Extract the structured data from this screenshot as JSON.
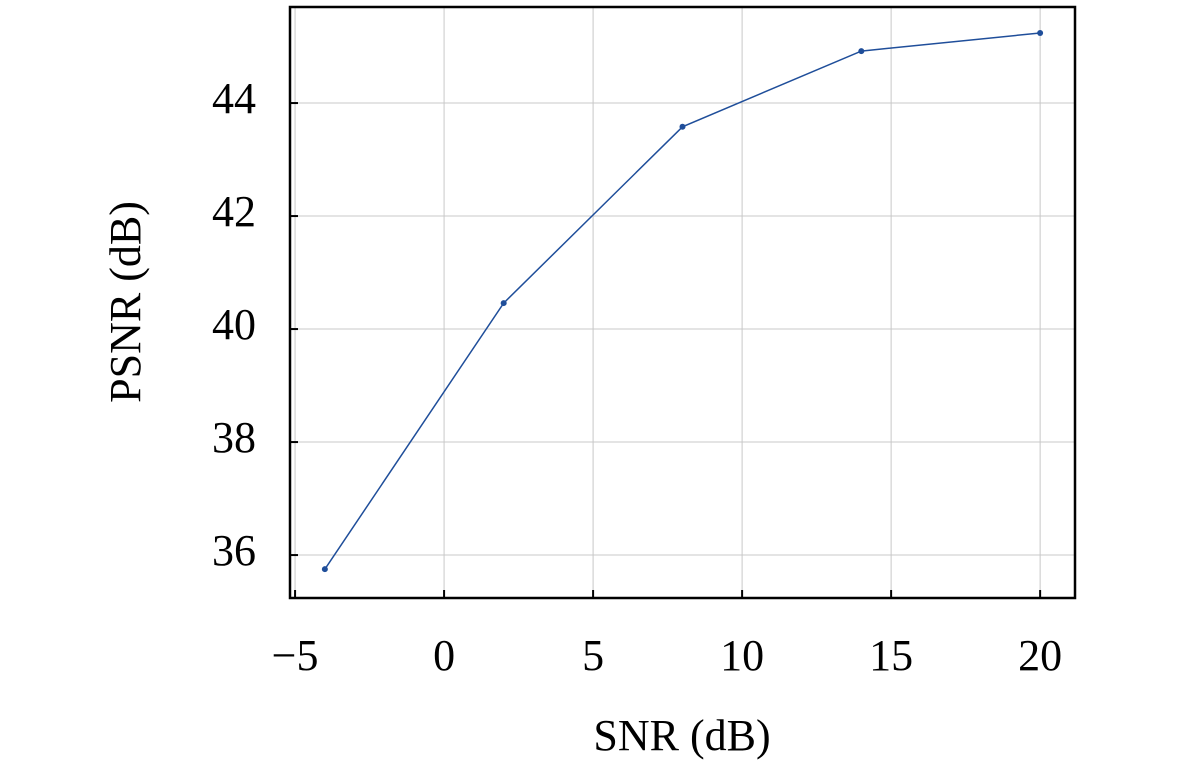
{
  "chart_data": {
    "type": "line",
    "x_label": "SNR (dB)",
    "y_label": "PSNR (dB)",
    "x": [
      -4,
      2,
      8,
      14,
      20
    ],
    "series": [
      {
        "name": "PSNR",
        "color": "#1f4e9a",
        "values": [
          35.75,
          40.46,
          43.58,
          44.92,
          45.24
        ]
      }
    ],
    "xlim": [
      -5.17,
      21.17
    ],
    "xticks": [
      {
        "value": -5,
        "label": "−5"
      },
      0,
      5,
      10,
      15,
      20
    ],
    "ylim": [
      35.24,
      45.7
    ],
    "yticks": [
      36,
      38,
      40,
      42,
      44
    ],
    "grid": true
  }
}
